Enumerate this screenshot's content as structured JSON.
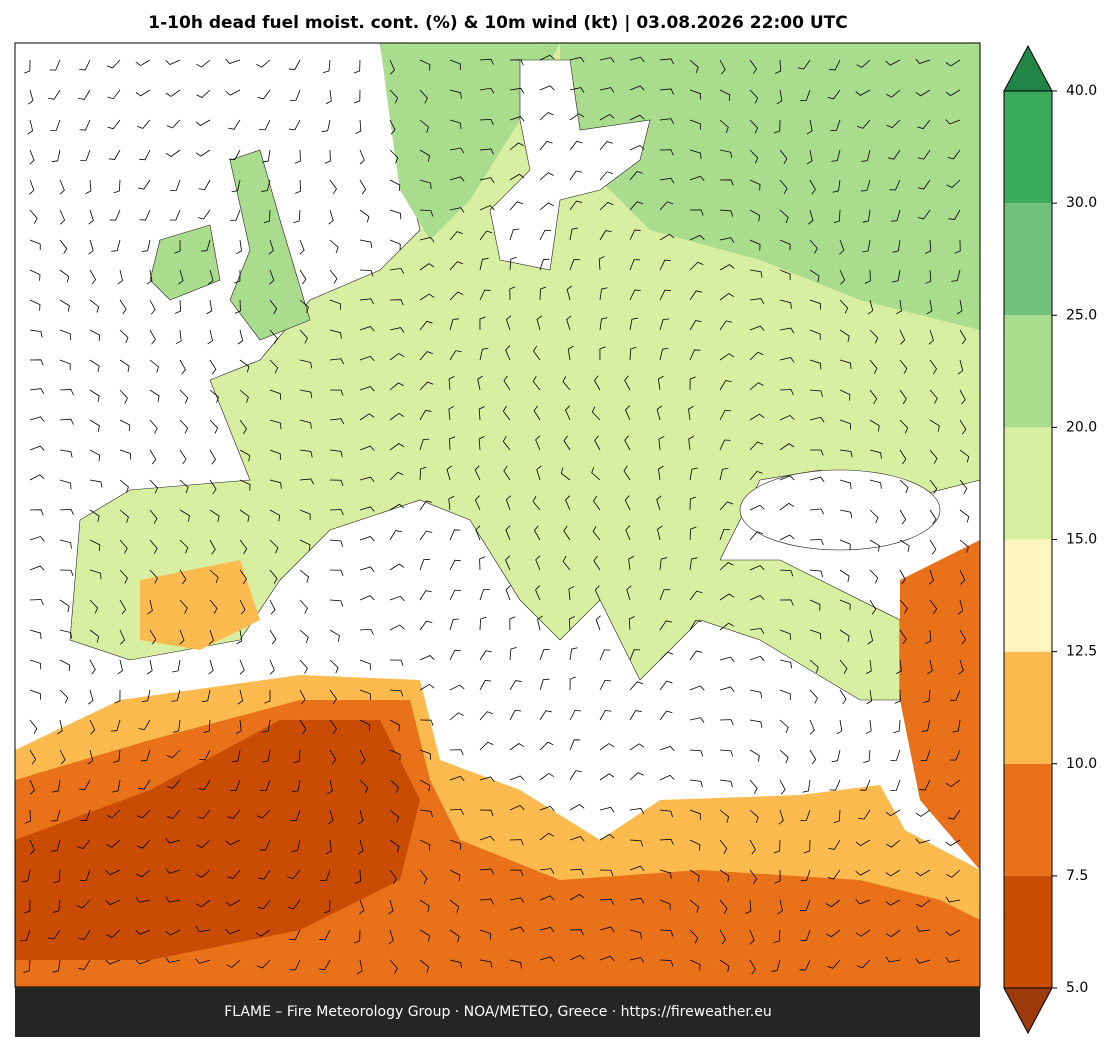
{
  "title": "1-10h dead fuel moist. cont. (%) & 10m wind (kt)  |  03.08.2026 22:00 UTC",
  "footer": "FLAME – Fire Meteorology Group · NOA/METEO, Greece · https://fireweather.eu",
  "colorbar": {
    "ticks": [
      {
        "value": 5,
        "label": "5.0"
      },
      7.5,
      {
        "value": 10,
        "label": "10.0"
      },
      12.5,
      {
        "value": 15,
        "label": "15.0"
      },
      {
        "value": 20,
        "label": "20.0"
      },
      {
        "value": 25,
        "label": "25.0"
      },
      {
        "value": 30,
        "label": "30.0"
      },
      {
        "value": 40,
        "label": "40.0"
      }
    ],
    "colors": [
      "#c94c02",
      "#e8711a",
      "#fdbb4f",
      "#fff5bd",
      "#d8eea0",
      "#a9dc8c",
      "#72c17a",
      "#3caa5b"
    ],
    "under_color": "#9c3a0a",
    "over_color": "#238447"
  }
}
